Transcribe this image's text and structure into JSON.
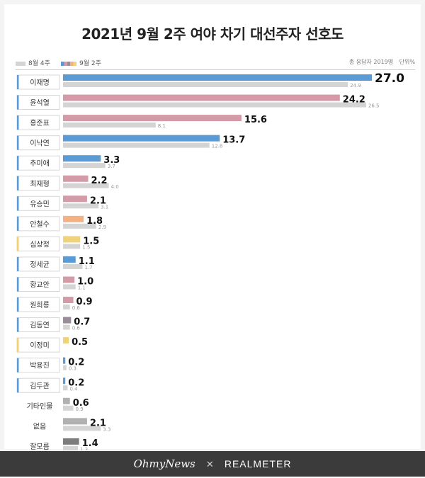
{
  "title": "2021년 9월 2주 여야 차기 대선주자 선호도",
  "legend": {
    "prev_label": "8월 4주",
    "cur_label": "9월 2주"
  },
  "meta": {
    "respondents": "총 응답자 2019명",
    "unit": "단위%"
  },
  "colors": {
    "prev": "#d4d4d4",
    "blue": "#5b9bd5",
    "pink": "#d39aa8",
    "orange": "#f5b183",
    "yellow": "#f0d27a",
    "mauve": "#9a8c98",
    "gray": "#b0b0b0",
    "darkgray": "#7d7d7d",
    "highlight": "#5b9bd5"
  },
  "footer": {
    "left": "OhmyNews",
    "separator": "✕",
    "right": "REALMETER"
  },
  "chart_data": {
    "type": "bar",
    "orientation": "horizontal",
    "title": "2021년 9월 2주 여야 차기 대선주자 선호도",
    "categories": [
      "이재명",
      "윤석열",
      "홍준표",
      "이낙연",
      "추미애",
      "최재형",
      "유승민",
      "안철수",
      "심상정",
      "정세균",
      "황교안",
      "원희룡",
      "김동연",
      "이정미",
      "박용진",
      "김두관",
      "기타인물",
      "없음",
      "잘모름"
    ],
    "series": [
      {
        "name": "9월 2주",
        "values": [
          27.0,
          24.2,
          15.6,
          13.7,
          3.3,
          2.2,
          2.1,
          1.8,
          1.5,
          1.1,
          1.0,
          0.9,
          0.7,
          0.5,
          0.2,
          0.2,
          0.6,
          2.1,
          1.4
        ]
      },
      {
        "name": "8월 4주",
        "values": [
          "24.9",
          "26.5",
          "8.1",
          "12.8",
          "3.7",
          "4.0",
          "3.1",
          "2.9",
          "1.5",
          "1.7",
          "1.1",
          "0.6",
          "0.6",
          null,
          "0.3",
          "0.4",
          "0.9",
          "3.3",
          "1.3"
        ]
      }
    ],
    "labels_cur": [
      "27.0",
      "24.2",
      "15.6",
      "13.7",
      "3.3",
      "2.2",
      "2.1",
      "1.8",
      "1.5",
      "1.1",
      "1.0",
      "0.9",
      "0.7",
      "0.5",
      "0.2",
      "0.2",
      "0.6",
      "2.1",
      "1.4"
    ],
    "bar_colors": [
      "blue",
      "pink",
      "pink",
      "blue",
      "blue",
      "pink",
      "pink",
      "orange",
      "yellow",
      "blue",
      "pink",
      "pink",
      "mauve",
      "yellow",
      "blue",
      "blue",
      "gray",
      "gray",
      "darkgray"
    ],
    "bordered_labels": [
      true,
      true,
      true,
      true,
      true,
      true,
      true,
      true,
      true,
      true,
      true,
      true,
      true,
      true,
      true,
      true,
      false,
      false,
      false
    ],
    "xlim": [
      0,
      27.0
    ]
  }
}
